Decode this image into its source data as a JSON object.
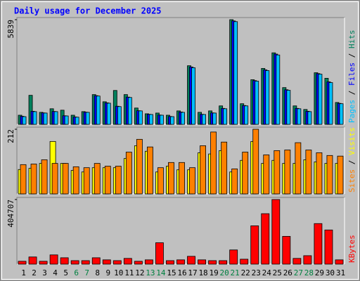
{
  "chart_data": [
    {
      "type": "bar",
      "title": "Daily usage for December 2025",
      "series": [
        {
          "name": "Hits",
          "color": "#00805c",
          "values": [
            510,
            1620,
            670,
            870,
            790,
            510,
            710,
            1660,
            1260,
            1890,
            1660,
            910,
            590,
            630,
            510,
            750,
            3270,
            670,
            750,
            1030,
            5839,
            1150,
            2490,
            3120,
            3990,
            2050,
            1030,
            830,
            2880,
            2570,
            1220
          ]
        },
        {
          "name": "Files",
          "color": "#0000ff",
          "values": [
            450,
            730,
            640,
            720,
            480,
            410,
            680,
            1600,
            1200,
            1010,
            1520,
            760,
            560,
            520,
            440,
            690,
            3200,
            560,
            640,
            890,
            5770,
            1050,
            2440,
            3040,
            3920,
            1930,
            890,
            730,
            2830,
            2370,
            1170
          ]
        },
        {
          "name": "Pages",
          "color": "#00c0ff",
          "values": [
            430,
            710,
            630,
            710,
            470,
            400,
            670,
            1580,
            1180,
            990,
            1500,
            750,
            550,
            510,
            430,
            670,
            3160,
            550,
            630,
            870,
            5730,
            1030,
            2410,
            3000,
            3870,
            1900,
            870,
            710,
            2800,
            2330,
            1150
          ]
        }
      ],
      "legend_separator": " / ",
      "ylim": [
        0,
        5839
      ],
      "yticks": [
        5839
      ]
    },
    {
      "type": "bar",
      "series": [
        {
          "name": "Visits",
          "color": "#ffff00",
          "values": [
            80,
            84,
            100,
            172,
            100,
            77,
            72,
            86,
            86,
            86,
            116,
            158,
            140,
            72,
            91,
            79,
            79,
            135,
            131,
            142,
            72,
            110,
            172,
            100,
            110,
            100,
            100,
            112,
            105,
            100,
            100
          ]
        },
        {
          "name": "Sites",
          "color": "#ff8000",
          "values": [
            96,
            98,
            112,
            100,
            100,
            89,
            86,
            100,
            91,
            91,
            137,
            179,
            154,
            86,
            103,
            103,
            86,
            158,
            203,
            170,
            82,
            137,
            212,
            128,
            142,
            144,
            168,
            144,
            135,
            126,
            124
          ]
        }
      ],
      "legend_separator": " / ",
      "ylim": [
        0,
        212
      ],
      "yticks": [
        212
      ]
    },
    {
      "type": "bar",
      "series": [
        {
          "name": "KBytes",
          "color": "#ff0000",
          "values": [
            18000,
            45000,
            18000,
            58000,
            40000,
            22000,
            22000,
            40000,
            27000,
            22000,
            36000,
            18000,
            27000,
            134000,
            22000,
            27000,
            49000,
            27000,
            22000,
            22000,
            89000,
            31000,
            240000,
            316000,
            404707,
            174000,
            36000,
            53000,
            254000,
            214000,
            27000
          ]
        }
      ],
      "ylim": [
        0,
        404707
      ],
      "yticks": [
        404707
      ],
      "categories": [
        "1",
        "2",
        "3",
        "4",
        "5",
        "6",
        "7",
        "8",
        "9",
        "10",
        "11",
        "12",
        "13",
        "14",
        "15",
        "16",
        "17",
        "18",
        "19",
        "20",
        "21",
        "22",
        "23",
        "24",
        "25",
        "26",
        "27",
        "28",
        "29",
        "30",
        "31"
      ],
      "category_colors": [
        "#000000",
        "#000000",
        "#000000",
        "#000000",
        "#000000",
        "#008040",
        "#008040",
        "#000000",
        "#000000",
        "#000000",
        "#000000",
        "#000000",
        "#008040",
        "#008040",
        "#000000",
        "#000000",
        "#000000",
        "#000000",
        "#000000",
        "#008040",
        "#008040",
        "#000000",
        "#000000",
        "#000000",
        "#000000",
        "#000000",
        "#008040",
        "#008040",
        "#000000",
        "#000000",
        "#000000"
      ]
    }
  ]
}
